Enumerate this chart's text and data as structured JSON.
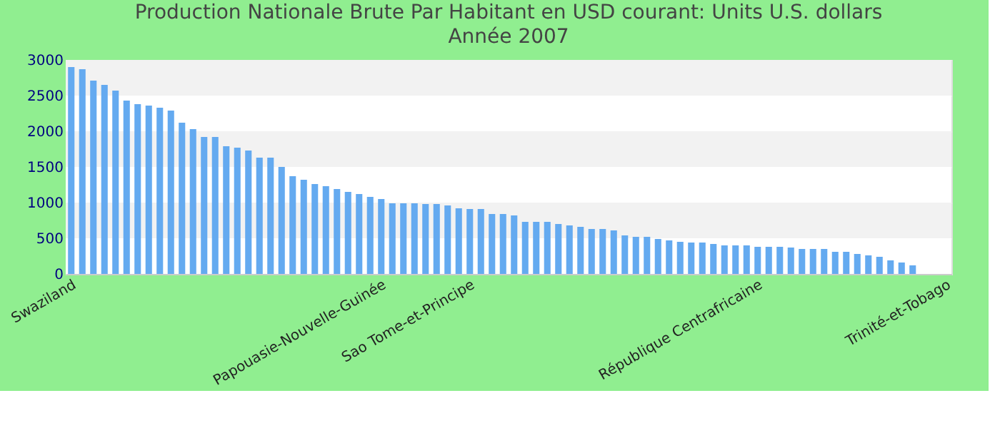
{
  "chart_data": {
    "type": "bar",
    "title": "Production Nationale Brute Par Habitant en USD courant: Units U.S. dollars",
    "subtitle": "Année 2007",
    "categories": [
      "Swaziland",
      null,
      null,
      null,
      null,
      null,
      null,
      null,
      null,
      null,
      null,
      null,
      null,
      null,
      null,
      null,
      null,
      null,
      null,
      null,
      null,
      null,
      null,
      null,
      null,
      null,
      null,
      null,
      "Papouasie-Nouvelle-Guinée",
      null,
      null,
      null,
      null,
      null,
      null,
      null,
      "Sao Tome-et-Principe",
      null,
      null,
      null,
      null,
      null,
      null,
      null,
      null,
      null,
      null,
      null,
      null,
      null,
      null,
      null,
      null,
      null,
      null,
      null,
      null,
      null,
      null,
      null,
      null,
      null,
      "République Centrafricaine",
      null,
      null,
      null,
      null,
      null,
      null,
      null,
      null,
      null,
      null,
      null,
      null,
      null,
      null,
      null,
      null,
      "Trinité-et-Tobago"
    ],
    "values": [
      2900,
      2870,
      2710,
      2650,
      2570,
      2430,
      2380,
      2360,
      2330,
      2290,
      2120,
      2030,
      1920,
      1920,
      1790,
      1770,
      1730,
      1630,
      1630,
      1500,
      1370,
      1320,
      1260,
      1230,
      1190,
      1150,
      1120,
      1080,
      1050,
      990,
      990,
      990,
      980,
      980,
      960,
      920,
      910,
      910,
      840,
      840,
      820,
      730,
      730,
      730,
      700,
      680,
      660,
      630,
      630,
      610,
      540,
      520,
      520,
      490,
      470,
      450,
      440,
      440,
      420,
      400,
      400,
      400,
      380,
      380,
      380,
      370,
      350,
      350,
      350,
      310,
      310,
      280,
      260,
      240,
      190,
      160,
      120,
      null,
      null,
      null
    ],
    "color": "#64aaf0",
    "ylim": [
      0,
      3000
    ],
    "yticks": [
      0,
      500,
      1000,
      1500,
      2000,
      2500,
      3000
    ],
    "grid": "y"
  }
}
